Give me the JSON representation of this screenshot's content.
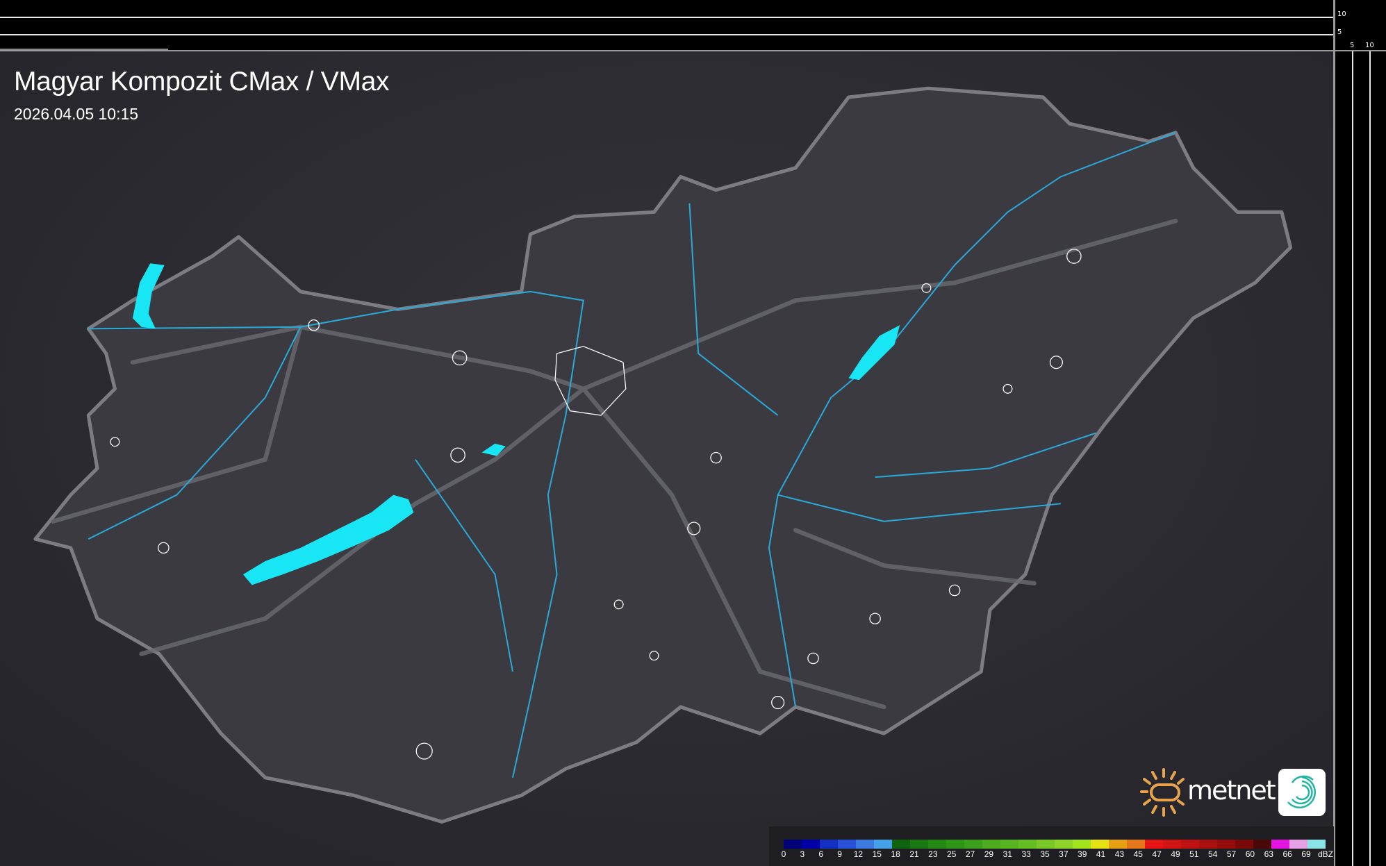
{
  "header": {
    "title": "Magyar Kompozit CMax / VMax",
    "timestamp": "2026.04.05 10:15"
  },
  "side_axis": {
    "vertical_ticks": [
      "10",
      "5"
    ],
    "horizontal_ticks": [
      "5",
      "10"
    ]
  },
  "map": {
    "region": "Hungary",
    "lakes": [
      "Balaton",
      "Velencei-tó",
      "Tisza-tó",
      "Fertő"
    ],
    "colors": {
      "background": "#2c2c31",
      "country": "#3a3a40",
      "border": "#7c7c82",
      "rivers": "#2aa8d8",
      "lakes": "#19e6f5",
      "towns": "#ffffff",
      "roads": "#6a6a70"
    }
  },
  "legend": {
    "unit": "dBZ",
    "labels": [
      "0",
      "3",
      "6",
      "9",
      "12",
      "15",
      "18",
      "21",
      "23",
      "25",
      "27",
      "29",
      "31",
      "33",
      "35",
      "37",
      "39",
      "41",
      "43",
      "45",
      "47",
      "49",
      "51",
      "54",
      "57",
      "60",
      "63",
      "66",
      "69"
    ],
    "colors": [
      "#000078",
      "#0000a8",
      "#1430c4",
      "#2850d8",
      "#3c7ae0",
      "#46a2e8",
      "#106410",
      "#1a7812",
      "#248a14",
      "#2e9616",
      "#3aa01c",
      "#4cac1e",
      "#58b420",
      "#64be22",
      "#7ac828",
      "#8ed22a",
      "#a2e41e",
      "#e6e214",
      "#e6a014",
      "#e6781c",
      "#e61414",
      "#d21414",
      "#be1212",
      "#aa1010",
      "#940c0c",
      "#780a0a",
      "#4a0808",
      "#e614e0",
      "#e6a0e6",
      "#8ae4e6"
    ]
  },
  "branding": {
    "logo": "metnet",
    "app_icon": "metnet-swirl-icon"
  }
}
